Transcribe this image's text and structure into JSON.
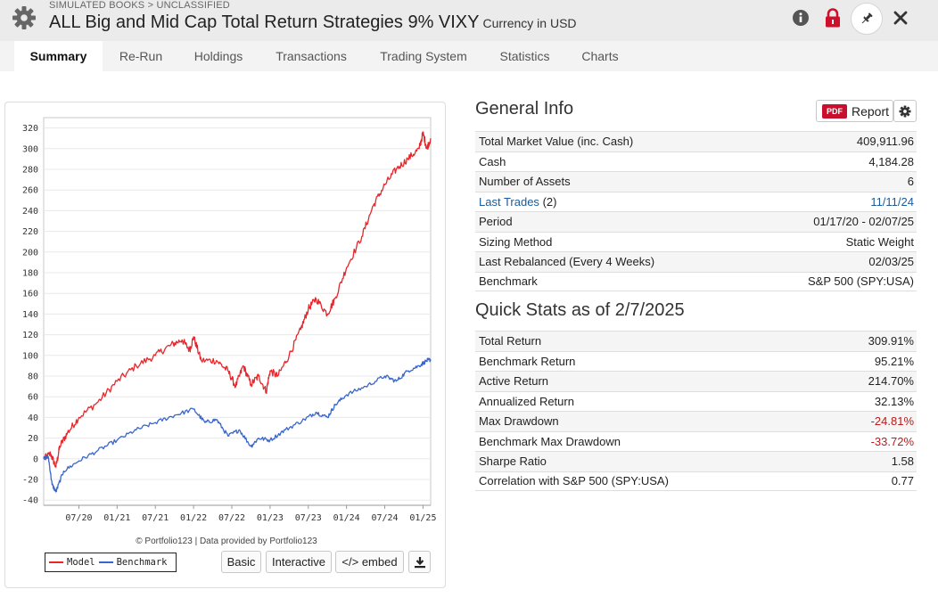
{
  "header": {
    "breadcrumb": "SIMULATED BOOKS > UNCLASSIFIED",
    "title": "ALL Big and Mid Cap Total Return Strategies 9% VIXY",
    "currency": "Currency in USD"
  },
  "icons": [
    "gear-icon",
    "info-icon",
    "lock-icon",
    "pin-icon",
    "close-icon",
    "download-icon"
  ],
  "tabs": [
    "Summary",
    "Re-Run",
    "Holdings",
    "Transactions",
    "Trading System",
    "Statistics",
    "Charts"
  ],
  "chart": {
    "credit": "© Portfolio123 | Data provided by Portfolio123",
    "buttons": {
      "basic": "Basic",
      "interactive": "Interactive",
      "embed": "</> embed"
    }
  },
  "general_info": {
    "title": "General Info",
    "report_pdf_badge": "PDF",
    "report_label": "Report",
    "rows": [
      {
        "label": "Total Market Value (inc. Cash)",
        "value": "409,911.96"
      },
      {
        "label": "Cash",
        "value": "4,184.28"
      },
      {
        "label": "Number of Assets",
        "value": "6"
      },
      {
        "label": "Last Trades",
        "label_suffix": "(2)",
        "value": "11/11/24"
      },
      {
        "label": "Period",
        "value": "01/17/20 - 02/07/25"
      },
      {
        "label": "Sizing Method",
        "value": "Static Weight"
      },
      {
        "label": "Last Rebalanced (Every 4 Weeks)",
        "value": "02/03/25"
      },
      {
        "label": "Benchmark",
        "value": "S&P 500 (SPY:USA)"
      }
    ]
  },
  "quick_stats": {
    "title": "Quick Stats as of 2/7/2025",
    "rows": [
      {
        "label": "Total Return",
        "value": "309.91%"
      },
      {
        "label": "Benchmark Return",
        "value": "95.21%"
      },
      {
        "label": "Active Return",
        "value": "214.70%"
      },
      {
        "label": "Annualized Return",
        "value": "32.13%"
      },
      {
        "label": "Max Drawdown",
        "value": "-24.81%"
      },
      {
        "label": "Benchmark Max Drawdown",
        "value": "-33.72%"
      },
      {
        "label": "Sharpe Ratio",
        "value": "1.58"
      },
      {
        "label": "Correlation with S&P 500 (SPY:USA)",
        "value": "0.77"
      }
    ]
  },
  "chart_data": {
    "type": "line",
    "title": "",
    "xlabel": "",
    "ylabel": "",
    "ylim": [
      -45,
      330
    ],
    "y_ticks": [
      320,
      300,
      280,
      260,
      240,
      220,
      200,
      180,
      160,
      140,
      120,
      100,
      80,
      60,
      40,
      20,
      0,
      -20,
      -40
    ],
    "x_tick_labels": [
      "07/20",
      "01/21",
      "07/21",
      "01/22",
      "07/22",
      "01/23",
      "07/23",
      "01/24",
      "07/24",
      "01/25"
    ],
    "x_tick_positions": [
      2020.5,
      2021.0,
      2021.5,
      2022.0,
      2022.5,
      2023.0,
      2023.5,
      2024.0,
      2024.5,
      2025.0
    ],
    "xlim": [
      2020.04,
      2025.1
    ],
    "legend_position": "bottom-left",
    "series": [
      {
        "name": "Model",
        "color": "#e8262b",
        "x": [
          2020.04,
          2020.13,
          2020.2,
          2020.25,
          2020.35,
          2020.5,
          2020.75,
          2021.0,
          2021.25,
          2021.5,
          2021.7,
          2021.85,
          2021.95,
          2022.0,
          2022.1,
          2022.3,
          2022.45,
          2022.55,
          2022.65,
          2022.75,
          2022.85,
          2022.95,
          2023.0,
          2023.1,
          2023.25,
          2023.4,
          2023.5,
          2023.6,
          2023.75,
          2023.85,
          2024.0,
          2024.2,
          2024.35,
          2024.5,
          2024.65,
          2024.8,
          2024.95,
          2025.0,
          2025.05,
          2025.1
        ],
        "y": [
          0,
          5,
          -8,
          12,
          25,
          40,
          55,
          75,
          90,
          100,
          110,
          115,
          105,
          118,
          95,
          95,
          85,
          70,
          90,
          72,
          80,
          65,
          85,
          80,
          100,
          125,
          145,
          155,
          140,
          155,
          185,
          215,
          245,
          265,
          280,
          290,
          300,
          315,
          300,
          310
        ]
      },
      {
        "name": "Benchmark",
        "color": "#3a66cc",
        "x": [
          2020.04,
          2020.1,
          2020.15,
          2020.2,
          2020.3,
          2020.5,
          2020.75,
          2021.0,
          2021.25,
          2021.5,
          2021.75,
          2022.0,
          2022.15,
          2022.3,
          2022.45,
          2022.6,
          2022.75,
          2022.85,
          2023.0,
          2023.2,
          2023.45,
          2023.6,
          2023.75,
          2023.85,
          2024.0,
          2024.25,
          2024.5,
          2024.65,
          2024.8,
          2024.95,
          2025.05,
          2025.1
        ],
        "y": [
          0,
          2,
          -25,
          -32,
          -12,
          -2,
          8,
          18,
          28,
          35,
          42,
          48,
          35,
          38,
          22,
          28,
          12,
          20,
          18,
          28,
          38,
          45,
          40,
          52,
          62,
          70,
          80,
          75,
          85,
          90,
          95,
          96
        ]
      }
    ]
  }
}
